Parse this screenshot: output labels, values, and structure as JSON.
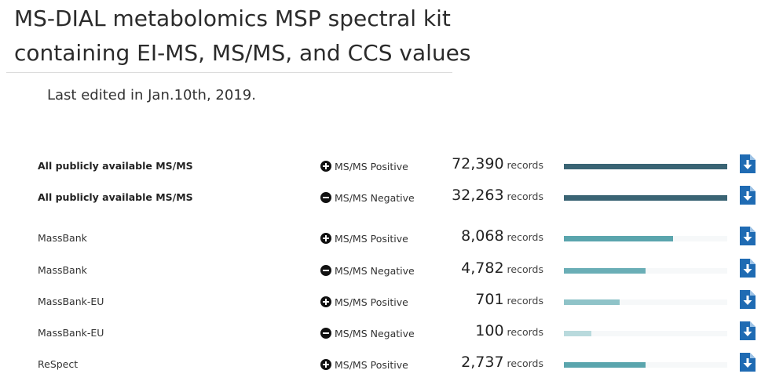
{
  "header": {
    "title_line1": "MS-DIAL metabolomics MSP spectral kit",
    "title_line2": "containing EI-MS, MS/MS, and CCS values",
    "last_edited": "Last edited in Jan.10th, 2019."
  },
  "colors": {
    "bar_dark": "#3a6474",
    "bar_teal": "#5aa5ad",
    "bar_light": "#8fc3c8",
    "bar_pale": "#b9dadd",
    "download_icon": "#1f6bb3"
  },
  "records_unit": "records",
  "rows": [
    {
      "name": "All publicly available MS/MS",
      "bold": true,
      "mode": "MS/MS Positive",
      "mode_icon": "plus-circle-icon",
      "count": "72,390",
      "proportion": 1.0,
      "bar_color": "#3a6474"
    },
    {
      "name": "All publicly available MS/MS",
      "bold": true,
      "mode": "MS/MS Negative",
      "mode_icon": "minus-circle-icon",
      "count": "32,263",
      "proportion": 1.0,
      "bar_color": "#3a6474"
    },
    {
      "name": "MassBank",
      "bold": false,
      "mode": "MS/MS Positive",
      "mode_icon": "plus-circle-icon",
      "count": "8,068",
      "proportion": 0.67,
      "bar_color": "#5aa5ad"
    },
    {
      "name": "MassBank",
      "bold": false,
      "mode": "MS/MS Negative",
      "mode_icon": "minus-circle-icon",
      "count": "4,782",
      "proportion": 0.5,
      "bar_color": "#6aaeb6"
    },
    {
      "name": "MassBank-EU",
      "bold": false,
      "mode": "MS/MS Positive",
      "mode_icon": "plus-circle-icon",
      "count": "701",
      "proportion": 0.34,
      "bar_color": "#8fc3c8"
    },
    {
      "name": "MassBank-EU",
      "bold": false,
      "mode": "MS/MS Negative",
      "mode_icon": "minus-circle-icon",
      "count": "100",
      "proportion": 0.17,
      "bar_color": "#b9dadd"
    },
    {
      "name": "ReSpect",
      "bold": false,
      "mode": "MS/MS Positive",
      "mode_icon": "plus-circle-icon",
      "count": "2,737",
      "proportion": 0.5,
      "bar_color": "#5aa5ad"
    }
  ]
}
